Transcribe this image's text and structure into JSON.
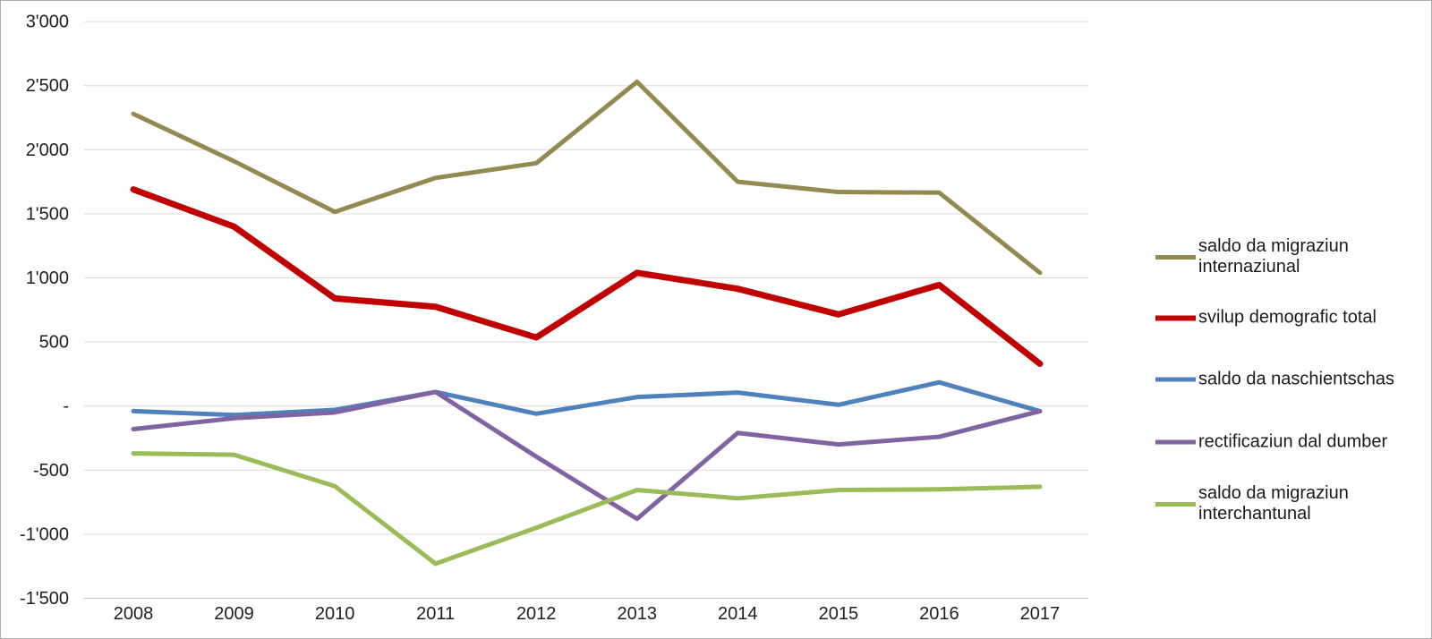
{
  "chart_data": {
    "type": "line",
    "categories": [
      "2008",
      "2009",
      "2010",
      "2011",
      "2012",
      "2013",
      "2014",
      "2015",
      "2016",
      "2017"
    ],
    "y_ticks": [
      {
        "label": "3'000",
        "value": 3000
      },
      {
        "label": "2'500",
        "value": 2500
      },
      {
        "label": "2'000",
        "value": 2000
      },
      {
        "label": "1'500",
        "value": 1500
      },
      {
        "label": "1'000",
        "value": 1000
      },
      {
        "label": "500",
        "value": 500
      },
      {
        "label": "-",
        "value": 0
      },
      {
        "label": "-500",
        "value": -500
      },
      {
        "label": "-1'000",
        "value": -1000
      },
      {
        "label": "-1'500",
        "value": -1500
      }
    ],
    "ylim": [
      -1500,
      3000
    ],
    "grid": true,
    "legend_position": "right",
    "series": [
      {
        "name": "saldo da migraziun internaziunal",
        "color": "#928A50",
        "line_width": 5,
        "values": [
          2280,
          1910,
          1515,
          1780,
          1895,
          2530,
          1750,
          1670,
          1665,
          1040
        ]
      },
      {
        "name": "svilup demografic total",
        "color": "#C00000",
        "line_width": 7,
        "values": [
          1690,
          1400,
          840,
          775,
          535,
          1040,
          915,
          715,
          945,
          330
        ]
      },
      {
        "name": "saldo da naschientschas",
        "color": "#4F81BD",
        "line_width": 5,
        "values": [
          -40,
          -70,
          -30,
          110,
          -60,
          70,
          105,
          10,
          185,
          -40
        ]
      },
      {
        "name": "rectificaziun dal dumber",
        "color": "#8064A2",
        "line_width": 5,
        "values": [
          -180,
          -95,
          -50,
          110,
          -395,
          -880,
          -210,
          -300,
          -240,
          -40
        ]
      },
      {
        "name": "saldo da migraziun interchantunal",
        "color": "#9BBB59",
        "line_width": 5,
        "values": [
          -370,
          -380,
          -625,
          -1230,
          -950,
          -655,
          -720,
          -655,
          -650,
          -630
        ]
      }
    ]
  }
}
